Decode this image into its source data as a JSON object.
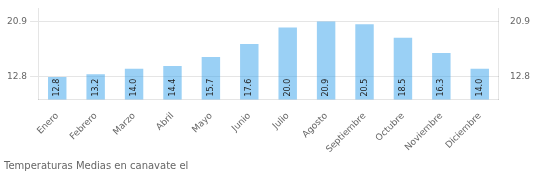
{
  "chart_data": {
    "type": "bar",
    "title": "Temperaturas Medias en canavate el",
    "categories": [
      "Enero",
      "Febrero",
      "Marzo",
      "Abril",
      "Mayo",
      "Junio",
      "Julio",
      "Agosto",
      "Septiembre",
      "Octubre",
      "Noviembre",
      "Diciembre"
    ],
    "values": [
      12.8,
      13.2,
      14.0,
      14.4,
      15.7,
      17.6,
      20.0,
      20.9,
      20.5,
      18.5,
      16.3,
      14.0
    ],
    "value_labels": [
      "12.8",
      "13.2",
      "14.0",
      "14.4",
      "15.7",
      "17.6",
      "20.0",
      "20.9",
      "20.5",
      "18.5",
      "16.3",
      "14.0"
    ],
    "data_labels": true,
    "ylim": [
      9.5,
      22.8
    ],
    "yticks": [
      12.8,
      20.9
    ],
    "y2lim": [
      9.5,
      22.8
    ],
    "y2ticks": [
      12.8,
      20.9
    ],
    "grid": true
  }
}
